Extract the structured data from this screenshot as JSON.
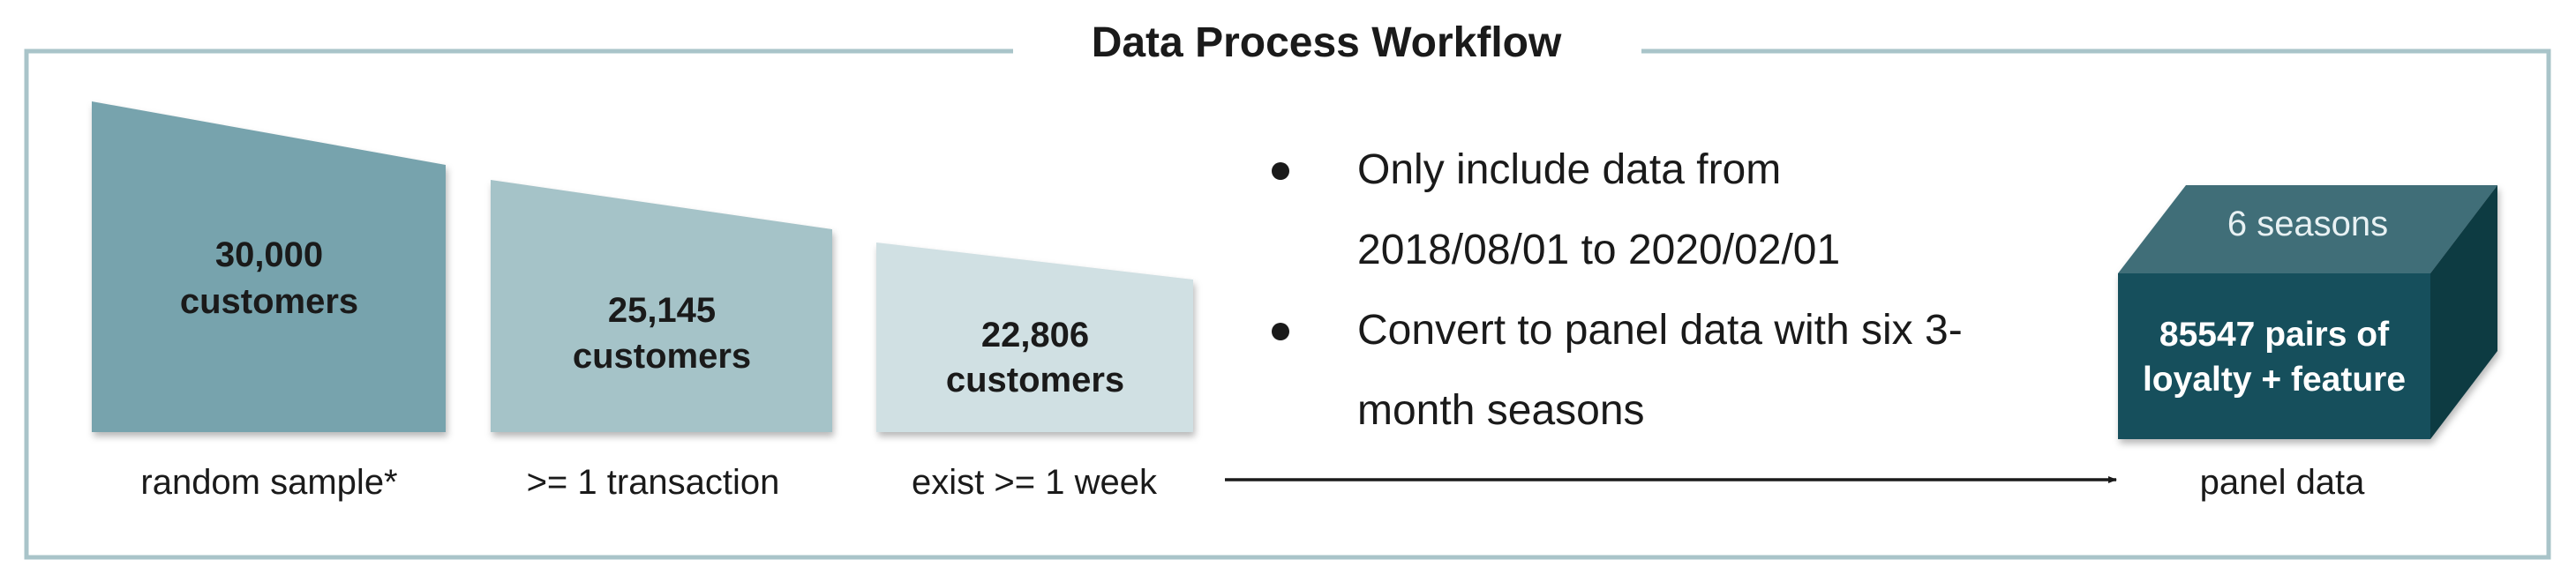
{
  "title": "Data Process Workflow",
  "stages": [
    {
      "line1": "30,000",
      "line2": "customers",
      "caption": "random sample*"
    },
    {
      "line1": "25,145",
      "line2": "customers",
      "caption": ">= 1 transaction"
    },
    {
      "line1": "22,806",
      "line2": "customers",
      "caption": "exist >= 1 week"
    }
  ],
  "notes": [
    {
      "lines": [
        "Only include data from",
        "2018/08/01 to 2020/02/01"
      ]
    },
    {
      "lines": [
        "Convert to panel data with six 3-",
        "month seasons"
      ]
    }
  ],
  "output": {
    "top_label": "6 seasons",
    "front_line1": "85547 pairs of",
    "front_line2": "loyalty + feature",
    "caption": "panel data"
  },
  "colors": {
    "frame": "#a9c4c9",
    "stage1": "#77a3ad",
    "stage2": "#a5c3c8",
    "stage3": "#d0e0e3",
    "cube_top": "#3f6e78",
    "cube_front": "#134f5c",
    "cube_side": "#0d3a43"
  }
}
